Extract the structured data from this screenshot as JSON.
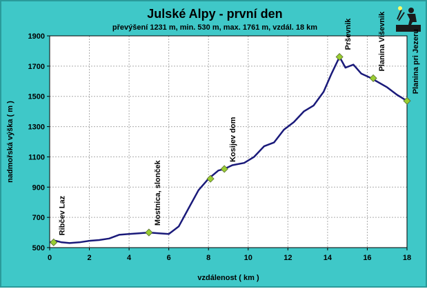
{
  "chart_data": {
    "type": "line",
    "title": "Julské Alpy - první den",
    "subtitle": "převýšení 1231 m, min. 530 m, max. 1761 m, vzdál. 18 km",
    "xlabel": "vzdálenost ( km )",
    "ylabel": "nadmořská výška ( m )",
    "xlim": [
      0,
      18
    ],
    "ylim": [
      500,
      1900
    ],
    "xticks": [
      0,
      2,
      4,
      6,
      8,
      10,
      12,
      14,
      16,
      18
    ],
    "yticks": [
      500,
      700,
      900,
      1100,
      1300,
      1500,
      1700,
      1900
    ],
    "grid": true,
    "colors": {
      "background": "#3fc8c8",
      "plot_background": "#ffffff",
      "line": "#1a1a7a",
      "marker": "#9acd32",
      "grid": "#aaaaaa"
    },
    "series": [
      {
        "x": [
          0,
          0.3,
          0.6,
          1.0,
          1.5,
          2.0,
          2.5,
          3.0,
          3.5,
          4.0,
          4.5,
          5.0,
          5.5,
          6.0,
          6.5,
          7.0,
          7.5,
          8.0,
          8.5,
          8.8,
          9.2,
          9.8,
          10.3,
          10.8,
          11.3,
          11.8,
          12.3,
          12.8,
          13.3,
          13.8,
          14.2,
          14.6,
          14.9,
          15.3,
          15.7,
          16.2,
          16.6,
          17.0,
          17.5,
          18.0
        ],
        "y": [
          535,
          545,
          535,
          530,
          535,
          545,
          550,
          560,
          585,
          590,
          595,
          600,
          595,
          590,
          640,
          760,
          880,
          955,
          1010,
          1020,
          1045,
          1060,
          1100,
          1170,
          1195,
          1280,
          1330,
          1400,
          1440,
          1530,
          1650,
          1761,
          1690,
          1710,
          1650,
          1620,
          1590,
          1560,
          1510,
          1470
        ]
      }
    ],
    "points": [
      {
        "label": "Ribčev Laz",
        "x": 0.2,
        "y": 535
      },
      {
        "label": "Mostnica, slonček",
        "x": 5.0,
        "y": 600
      },
      {
        "label": "Kosijev dom",
        "x": 8.8,
        "y": 1020
      },
      {
        "label": "",
        "x": 8.1,
        "y": 955
      },
      {
        "label": "Prševnik",
        "x": 14.6,
        "y": 1761
      },
      {
        "label": "Planina Viševnik",
        "x": 16.3,
        "y": 1620
      },
      {
        "label": "Planina pri Jezeru",
        "x": 18.0,
        "y": 1470
      }
    ]
  }
}
